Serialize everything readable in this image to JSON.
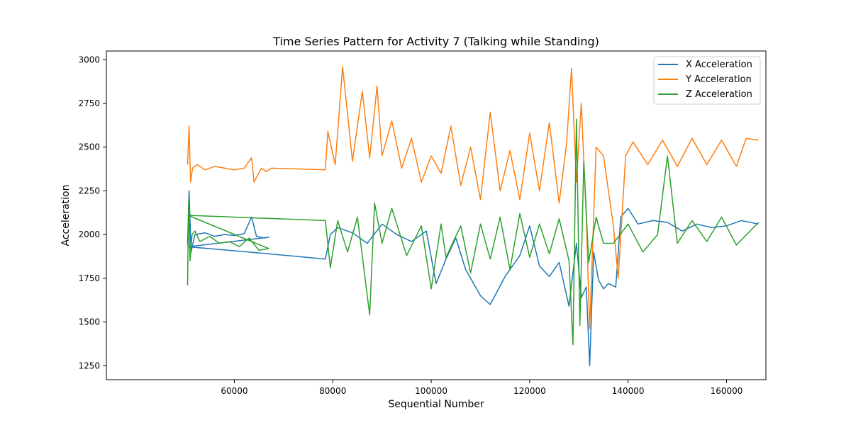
{
  "chart_data": {
    "type": "line",
    "title": "Time Series Pattern for Activity 7 (Talking while Standing)",
    "xlabel": "Sequential Number",
    "ylabel": "Acceleration",
    "xlim": [
      34000,
      168000
    ],
    "ylim": [
      1170,
      3050
    ],
    "xticks": [
      60000,
      80000,
      100000,
      120000,
      140000,
      160000
    ],
    "yticks": [
      1250,
      1500,
      1750,
      2000,
      2250,
      2500,
      2750,
      3000
    ],
    "grid": false,
    "legend_position": "top-right",
    "series": [
      {
        "name": "X Acceleration",
        "color": "#1f77b4",
        "x": [
          50500,
          50800,
          51200,
          52000,
          54000,
          56000,
          58000,
          60000,
          62000,
          63500,
          64500,
          66000,
          67000,
          50600,
          67000,
          78500,
          79500,
          81000,
          84000,
          87000,
          90000,
          93000,
          96000,
          99000,
          101000,
          103000,
          105000,
          107000,
          110000,
          112000,
          115000,
          118000,
          120000,
          122000,
          124000,
          126000,
          128000,
          129500,
          130500,
          131500,
          132200,
          133000,
          134000,
          135000,
          136000,
          137500,
          138500,
          140000,
          142000,
          145000,
          148000,
          151000,
          154000,
          157000,
          160000,
          163000,
          166500
        ],
        "y": [
          1940,
          2250,
          1900,
          2000,
          2010,
          1990,
          2000,
          1995,
          2005,
          2100,
          1990,
          1980,
          1985,
          1930,
          1890,
          1860,
          2000,
          2040,
          2010,
          1950,
          2060,
          2000,
          1960,
          2020,
          1720,
          1860,
          1980,
          1800,
          1650,
          1600,
          1760,
          1880,
          2050,
          1820,
          1760,
          1840,
          1590,
          1950,
          1640,
          1700,
          1250,
          1900,
          1740,
          1690,
          1720,
          1700,
          2100,
          2150,
          2060,
          2080,
          2070,
          2020,
          2060,
          2040,
          2050,
          2080,
          2060
        ]
      },
      {
        "name": "Y Acceleration",
        "color": "#ff7f0e",
        "x": [
          50500,
          50800,
          51100,
          51500,
          52500,
          54000,
          56000,
          58000,
          60000,
          62000,
          63500,
          64000,
          65500,
          66500,
          67500,
          78500,
          79000,
          80500,
          82000,
          84000,
          86000,
          87500,
          89000,
          90000,
          92000,
          94000,
          96000,
          98000,
          100000,
          102000,
          104000,
          106000,
          108000,
          110000,
          112000,
          114000,
          116000,
          118000,
          120000,
          122000,
          124000,
          126000,
          127500,
          128500,
          129500,
          130500,
          131500,
          132200,
          133500,
          135000,
          137000,
          138000,
          139500,
          141000,
          144000,
          147000,
          150000,
          153000,
          156000,
          159000,
          162000,
          164000,
          166500
        ],
        "y": [
          2400,
          2620,
          2300,
          2380,
          2400,
          2370,
          2390,
          2380,
          2370,
          2380,
          2440,
          2300,
          2380,
          2360,
          2380,
          2370,
          2590,
          2400,
          2960,
          2420,
          2820,
          2440,
          2850,
          2450,
          2650,
          2380,
          2550,
          2300,
          2450,
          2350,
          2620,
          2280,
          2500,
          2200,
          2700,
          2250,
          2480,
          2200,
          2580,
          2250,
          2640,
          2180,
          2520,
          2950,
          2300,
          2750,
          2100,
          1460,
          2500,
          2450,
          2050,
          1750,
          2450,
          2530,
          2400,
          2540,
          2390,
          2550,
          2400,
          2540,
          2390,
          2550,
          2540
        ]
      },
      {
        "name": "Z Acceleration",
        "color": "#2ca02c",
        "x": [
          50500,
          50700,
          51000,
          51400,
          52000,
          53000,
          55000,
          57000,
          59000,
          61000,
          63000,
          65000,
          67000,
          50600,
          78500,
          79500,
          81000,
          83000,
          85000,
          87500,
          88500,
          90000,
          92000,
          95000,
          98000,
          100000,
          102000,
          103000,
          106000,
          108000,
          110000,
          112000,
          114000,
          116000,
          118000,
          120000,
          122000,
          124000,
          126000,
          128000,
          128800,
          129500,
          130200,
          131000,
          132000,
          133500,
          135000,
          137000,
          140000,
          143000,
          146000,
          148000,
          150000,
          153000,
          156000,
          159000,
          162000,
          166500
        ],
        "y": [
          1710,
          2190,
          1850,
          2000,
          2020,
          1960,
          1990,
          1950,
          1960,
          1930,
          1980,
          1910,
          1920,
          2110,
          2080,
          1810,
          2080,
          1900,
          2100,
          1540,
          2180,
          1950,
          2150,
          1880,
          2050,
          1690,
          2060,
          1870,
          2050,
          1780,
          2060,
          1860,
          2100,
          1800,
          2120,
          1870,
          2060,
          1890,
          2090,
          1850,
          1370,
          2660,
          1480,
          2420,
          1840,
          2100,
          1950,
          1950,
          2060,
          1900,
          2000,
          2450,
          1950,
          2080,
          1960,
          2100,
          1940,
          2070
        ]
      }
    ]
  }
}
